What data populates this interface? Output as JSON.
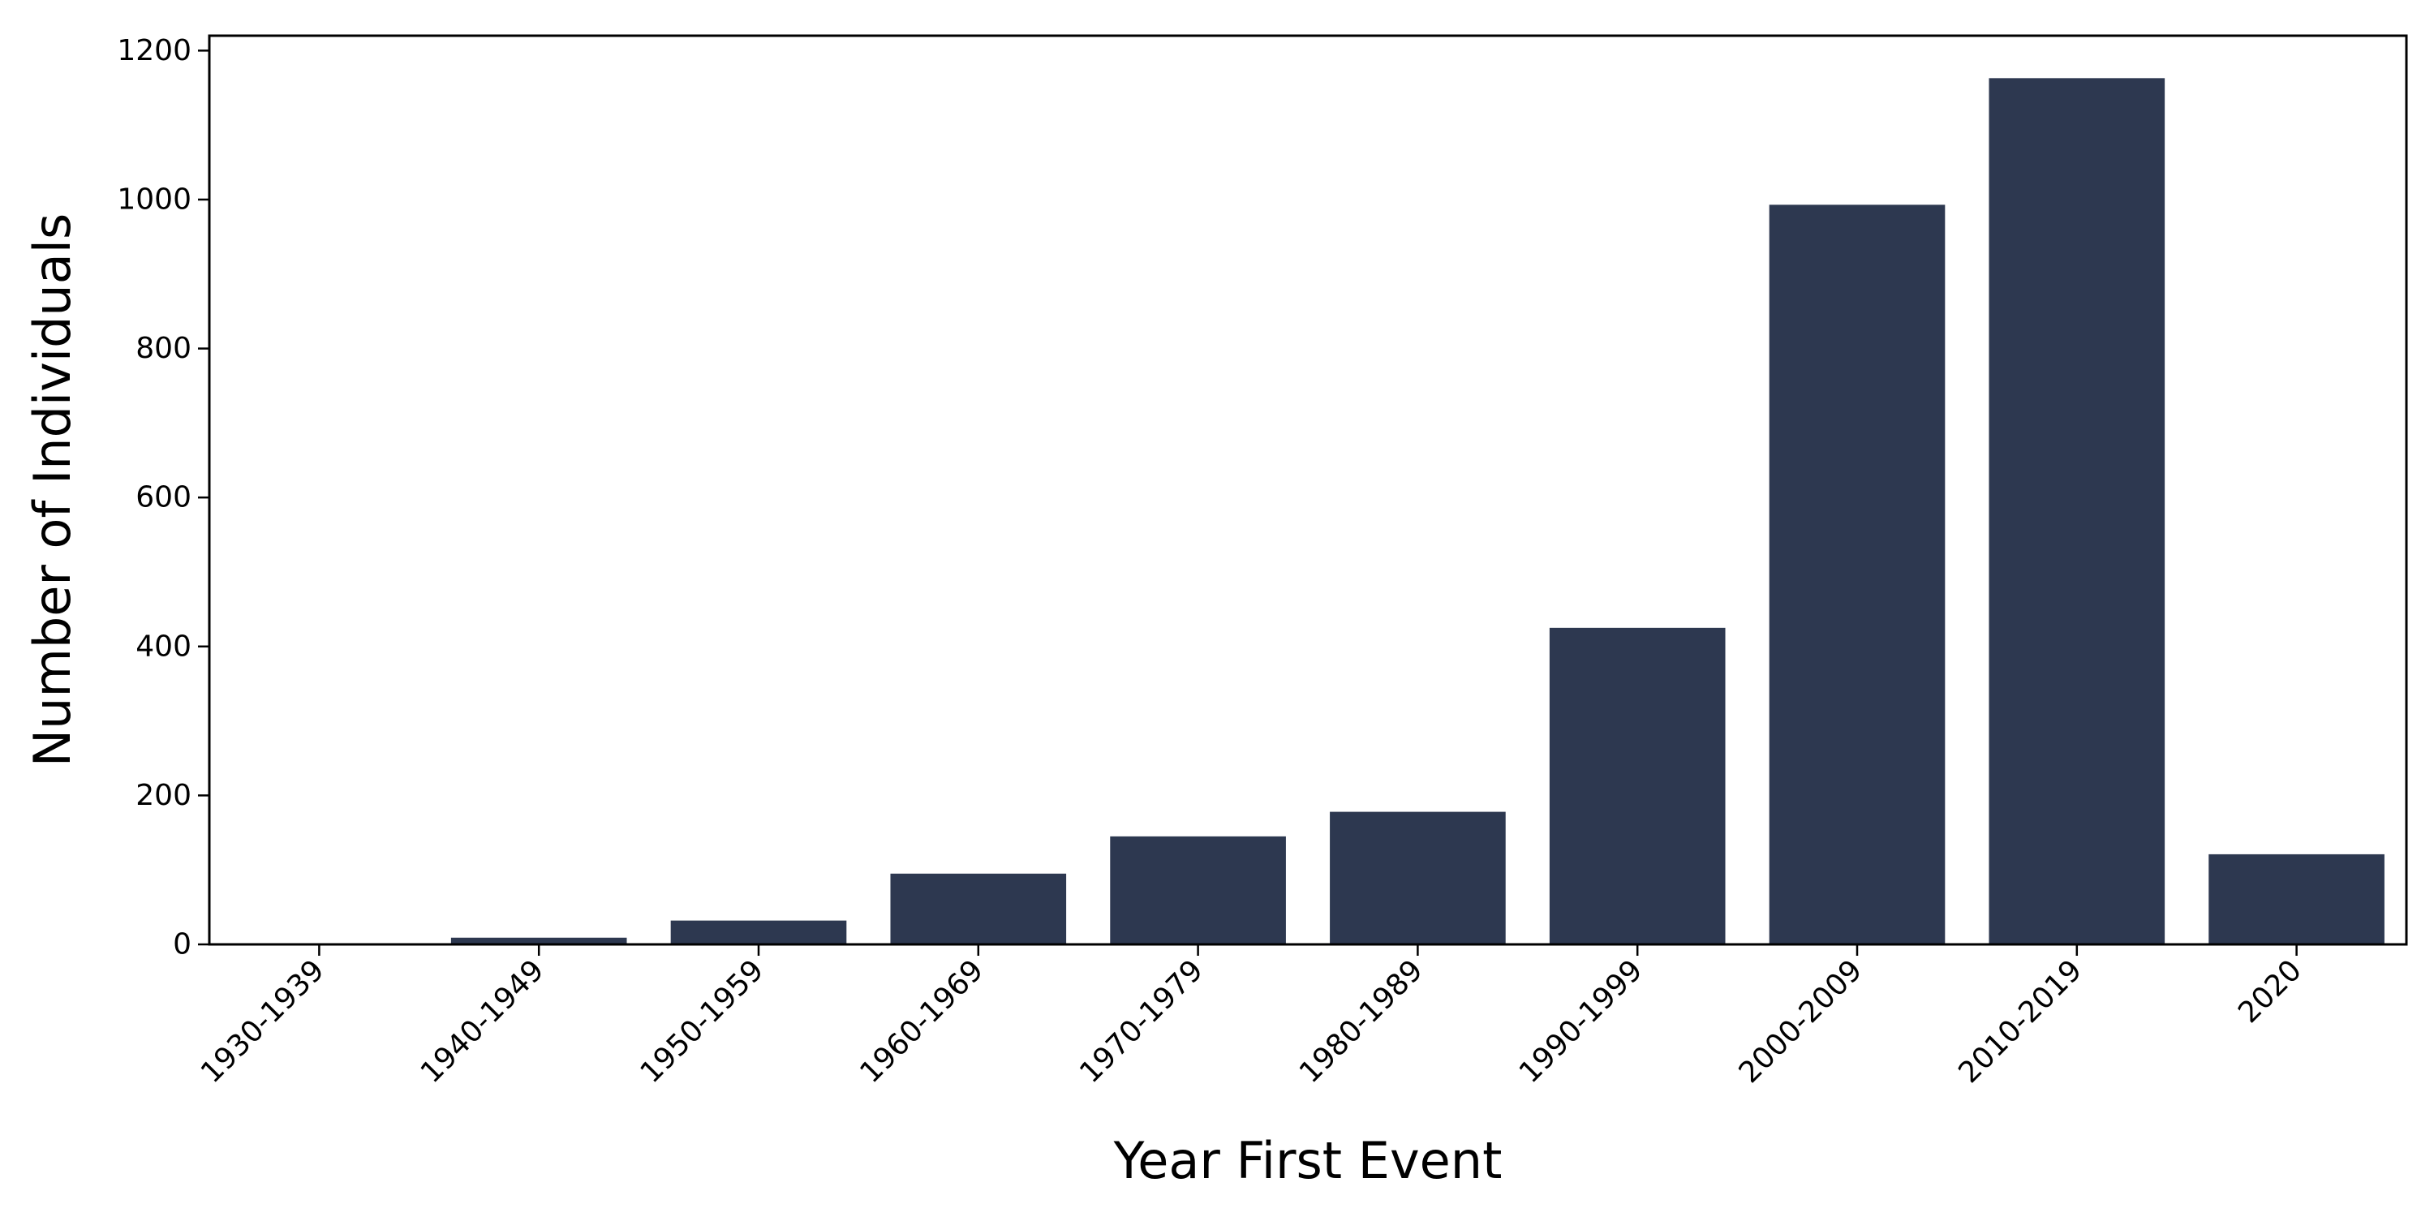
{
  "chart_data": {
    "type": "bar",
    "title": "",
    "xlabel": "Year First Event",
    "ylabel": "Number of Individuals",
    "categories": [
      "1930-1939",
      "1940-1949",
      "1950-1959",
      "1960-1969",
      "1970-1979",
      "1980-1989",
      "1990-1999",
      "2000-2009",
      "2010-2019",
      "2020"
    ],
    "values": [
      1,
      9,
      32,
      95,
      145,
      178,
      425,
      993,
      1163,
      121
    ],
    "ylim": [
      0,
      1220
    ],
    "yticks": [
      0,
      200,
      400,
      600,
      800,
      1000,
      1200
    ],
    "grid": false,
    "legend": "none",
    "bar_color": "#2d3850"
  }
}
